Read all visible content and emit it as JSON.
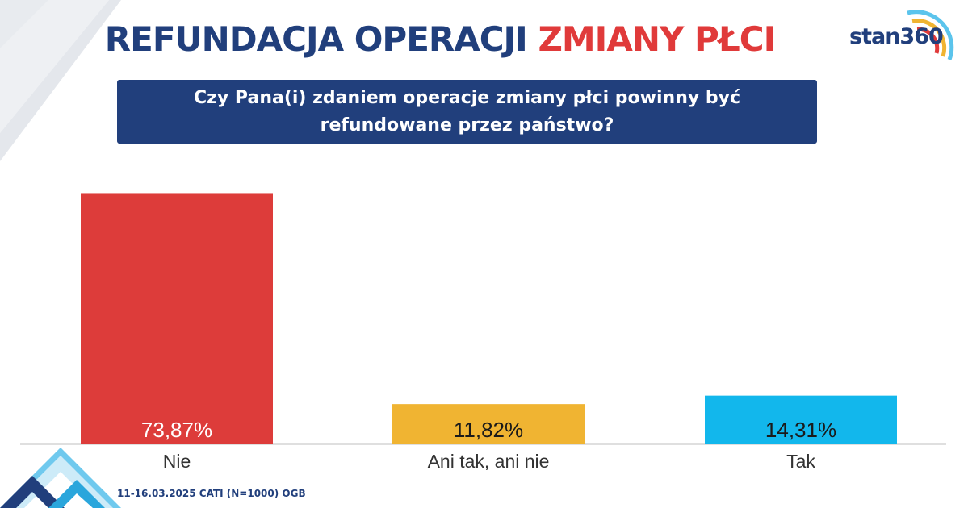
{
  "header": {
    "title_main": "REFUNDACJA OPERACJI",
    "title_highlight": "ZMIANY PŁCI",
    "logo_text": "stan360"
  },
  "question": {
    "line1": "Czy Pana(i) zdaniem operacje zmiany płci powinny być",
    "line2": "refundowane przez państwo?"
  },
  "footer": {
    "note": "11-16.03.2025 CATI (N=1000) OGB"
  },
  "chart_data": {
    "type": "bar",
    "categories": [
      "Nie",
      "Ani tak, ani nie",
      "Tak"
    ],
    "values": [
      73.87,
      11.82,
      14.31
    ],
    "value_labels": [
      "73,87%",
      "11,82%",
      "14,31%"
    ],
    "colors": [
      "#dd3c3a",
      "#f0b432",
      "#12b7ec"
    ],
    "label_colors": [
      "#ffffff",
      "#1a1a1a",
      "#1a1a1a"
    ],
    "title": "Czy Pana(i) zdaniem operacje zmiany płci powinny być refundowane przez państwo?",
    "xlabel": "",
    "ylabel": "",
    "ylim": [
      0,
      75
    ],
    "grid": false,
    "unit": "%"
  },
  "colors": {
    "navy": "#213f7c",
    "red": "#e03a3a",
    "sky": "#5bc4ec"
  }
}
